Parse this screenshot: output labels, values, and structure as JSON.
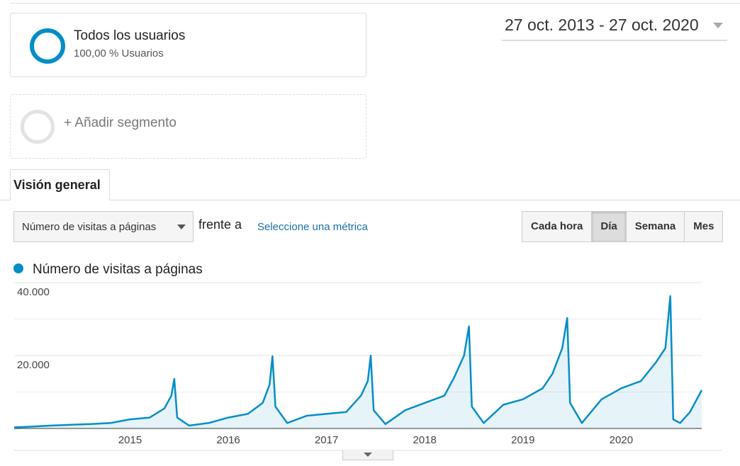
{
  "segment": {
    "title": "Todos los usuarios",
    "subtitle": "100,00 % Usuarios"
  },
  "add_segment": "+ Añadir segmento",
  "date_range": "27 oct. 2013 - 27 oct. 2020",
  "tab": "Visión general",
  "metric_select": "Número de visitas a páginas",
  "versus": "frente a",
  "select_metric": "Seleccione una métrica",
  "granularity": [
    "Cada hora",
    "Día",
    "Semana",
    "Mes"
  ],
  "chart_data": {
    "type": "line",
    "x": [
      2013.82,
      2014.0,
      2014.2,
      2014.4,
      2014.6,
      2014.8,
      2015.0,
      2015.2,
      2015.35,
      2015.42,
      2015.45,
      2015.48,
      2015.6,
      2015.8,
      2016.0,
      2016.2,
      2016.35,
      2016.42,
      2016.45,
      2016.48,
      2016.6,
      2016.8,
      2017.0,
      2017.2,
      2017.35,
      2017.42,
      2017.45,
      2017.48,
      2017.6,
      2017.8,
      2018.0,
      2018.2,
      2018.3,
      2018.4,
      2018.45,
      2018.48,
      2018.6,
      2018.8,
      2019.0,
      2019.2,
      2019.3,
      2019.4,
      2019.45,
      2019.48,
      2019.6,
      2019.8,
      2020.0,
      2020.2,
      2020.35,
      2020.45,
      2020.5,
      2020.53,
      2020.6,
      2020.7,
      2020.82
    ],
    "series": [
      {
        "name": "Número de visitas a páginas",
        "color": "#058dc7",
        "values": [
          300,
          500,
          800,
          1000,
          1200,
          1500,
          2500,
          3000,
          5500,
          9000,
          13600,
          3000,
          800,
          1500,
          3000,
          4000,
          7000,
          12000,
          19800,
          6000,
          1500,
          3500,
          4000,
          4500,
          9000,
          13000,
          20000,
          5000,
          1200,
          5000,
          7000,
          9000,
          14000,
          20000,
          28000,
          6000,
          1500,
          6500,
          8000,
          11000,
          15000,
          22000,
          30300,
          7000,
          1500,
          8000,
          11000,
          13000,
          18000,
          22000,
          36300,
          2500,
          1500,
          4500,
          10500
        ]
      }
    ],
    "xlim": [
      2013.82,
      2020.82
    ],
    "xticks": [
      2015,
      2016,
      2017,
      2018,
      2019,
      2020
    ],
    "ylim": [
      0,
      40000
    ],
    "yticks": [
      {
        "value": 20000,
        "label": "20.000"
      },
      {
        "value": 40000,
        "label": "40.000"
      }
    ],
    "grid": true
  }
}
